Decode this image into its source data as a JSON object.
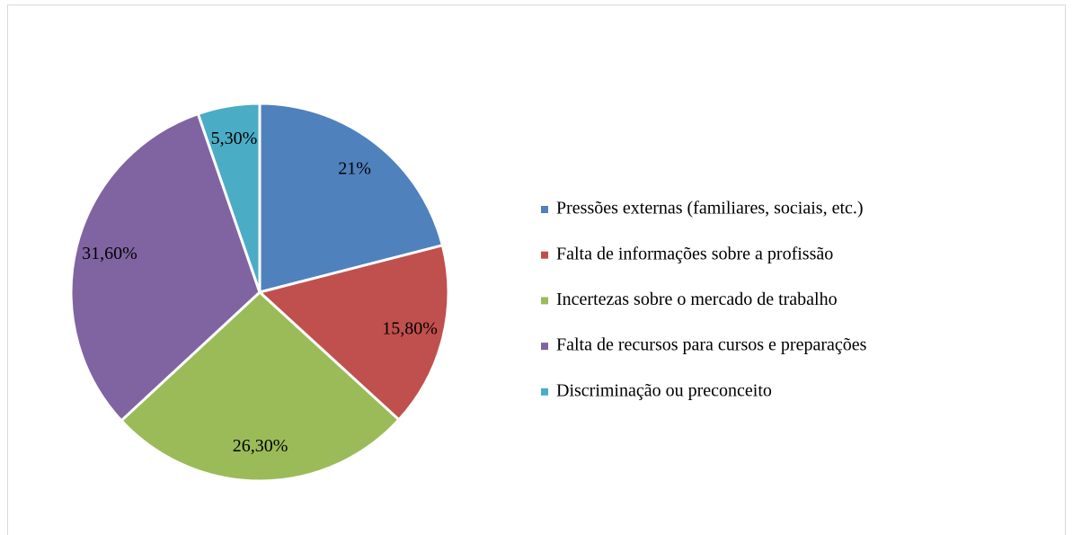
{
  "chart_data": {
    "type": "pie",
    "categories": [
      "Pressões externas (familiares, sociais, etc.)",
      "Falta de informações sobre a profissão",
      "Incertezas sobre o mercado de trabalho",
      "Falta de recursos para cursos e preparações",
      "Discriminação ou preconceito"
    ],
    "values": [
      21,
      15.8,
      26.3,
      31.6,
      5.3
    ],
    "value_labels": [
      "21%",
      "15,80%",
      "26,30%",
      "31,60%",
      "5,30%"
    ],
    "colors": [
      "#4f81bd",
      "#c0504d",
      "#9bbb59",
      "#8064a2",
      "#4bacc6"
    ],
    "legend": "right"
  }
}
